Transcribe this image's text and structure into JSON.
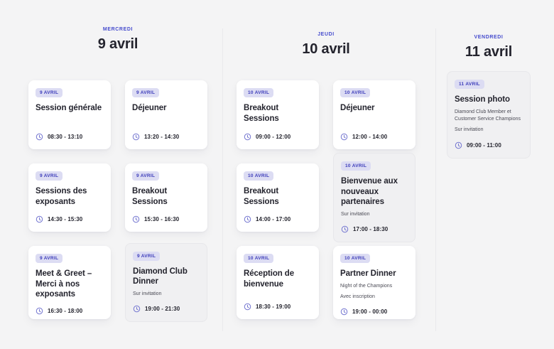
{
  "colors": {
    "page_bg": "#f4f4f5",
    "card_bg": "#ffffff",
    "muted_card_bg": "#f0f0f2",
    "muted_card_border": "#e7e7ea",
    "accent": "#454bcd",
    "badge_bg": "#dcdcf3",
    "badge_text": "#3c3cba",
    "title_text": "#24242e",
    "subtitle_text": "#4b4b55",
    "divider": "#e9e9ec",
    "clock": "#7476d0"
  },
  "columns": [
    {
      "id": "mercredi",
      "day_label": "MERCREDI",
      "date_label": "9 avril",
      "events": [
        {
          "badge": "9 AVRIL",
          "title": "Session générale",
          "subtitles": [],
          "time": "08:30 - 13:10",
          "muted": false
        },
        {
          "badge": "9 AVRIL",
          "title": "Déjeuner",
          "subtitles": [],
          "time": "13:20 - 14:30",
          "muted": false
        },
        {
          "badge": "9 AVRIL",
          "title": "Sessions des exposants",
          "subtitles": [],
          "time": "14:30 - 15:30",
          "muted": false
        },
        {
          "badge": "9 AVRIL",
          "title": "Breakout Sessions",
          "subtitles": [],
          "time": "15:30 - 16:30",
          "muted": false
        },
        {
          "badge": "9 AVRIL",
          "title": "Meet & Greet – Merci à nos exposants",
          "subtitles": [],
          "time": "16:30 - 18:00",
          "muted": false
        },
        {
          "badge": "9 AVRIL",
          "title": "Diamond Club Dinner",
          "subtitles": [
            "Sur invitation"
          ],
          "time": "19:00 - 21:30",
          "muted": true
        }
      ]
    },
    {
      "id": "jeudi",
      "day_label": "JEUDI",
      "date_label": "10 avril",
      "events": [
        {
          "badge": "10 AVRIL",
          "title": "Breakout Sessions",
          "subtitles": [],
          "time": "09:00 - 12:00",
          "muted": false
        },
        {
          "badge": "10 AVRIL",
          "title": "Déjeuner",
          "subtitles": [],
          "time": "12:00 - 14:00",
          "muted": false
        },
        {
          "badge": "10 AVRIL",
          "title": "Breakout Sessions",
          "subtitles": [],
          "time": "14:00 - 17:00",
          "muted": false
        },
        {
          "badge": "10 AVRIL",
          "title": "Bienvenue aux nouveaux partenaires",
          "subtitles": [
            "Sur invitation"
          ],
          "time": "17:00 - 18:30",
          "muted": true
        },
        {
          "badge": "10 AVRIL",
          "title": "Réception de bienvenue",
          "subtitles": [],
          "time": "18:30 - 19:00",
          "muted": false
        },
        {
          "badge": "10 AVRIL",
          "title": "Partner Dinner",
          "subtitles": [
            "Night of the Champions",
            "Avec inscription"
          ],
          "time": "19:00 - 00:00",
          "muted": false
        }
      ]
    },
    {
      "id": "vendredi",
      "day_label": "VENDREDI",
      "date_label": "11 avril",
      "events": [
        {
          "badge": "11 AVRIL",
          "title": "Session photo",
          "subtitles": [
            "Diamond Club Member et Customer Service Champions",
            "Sur invitation"
          ],
          "time": "09:00 - 11:00",
          "muted": true
        }
      ]
    }
  ]
}
